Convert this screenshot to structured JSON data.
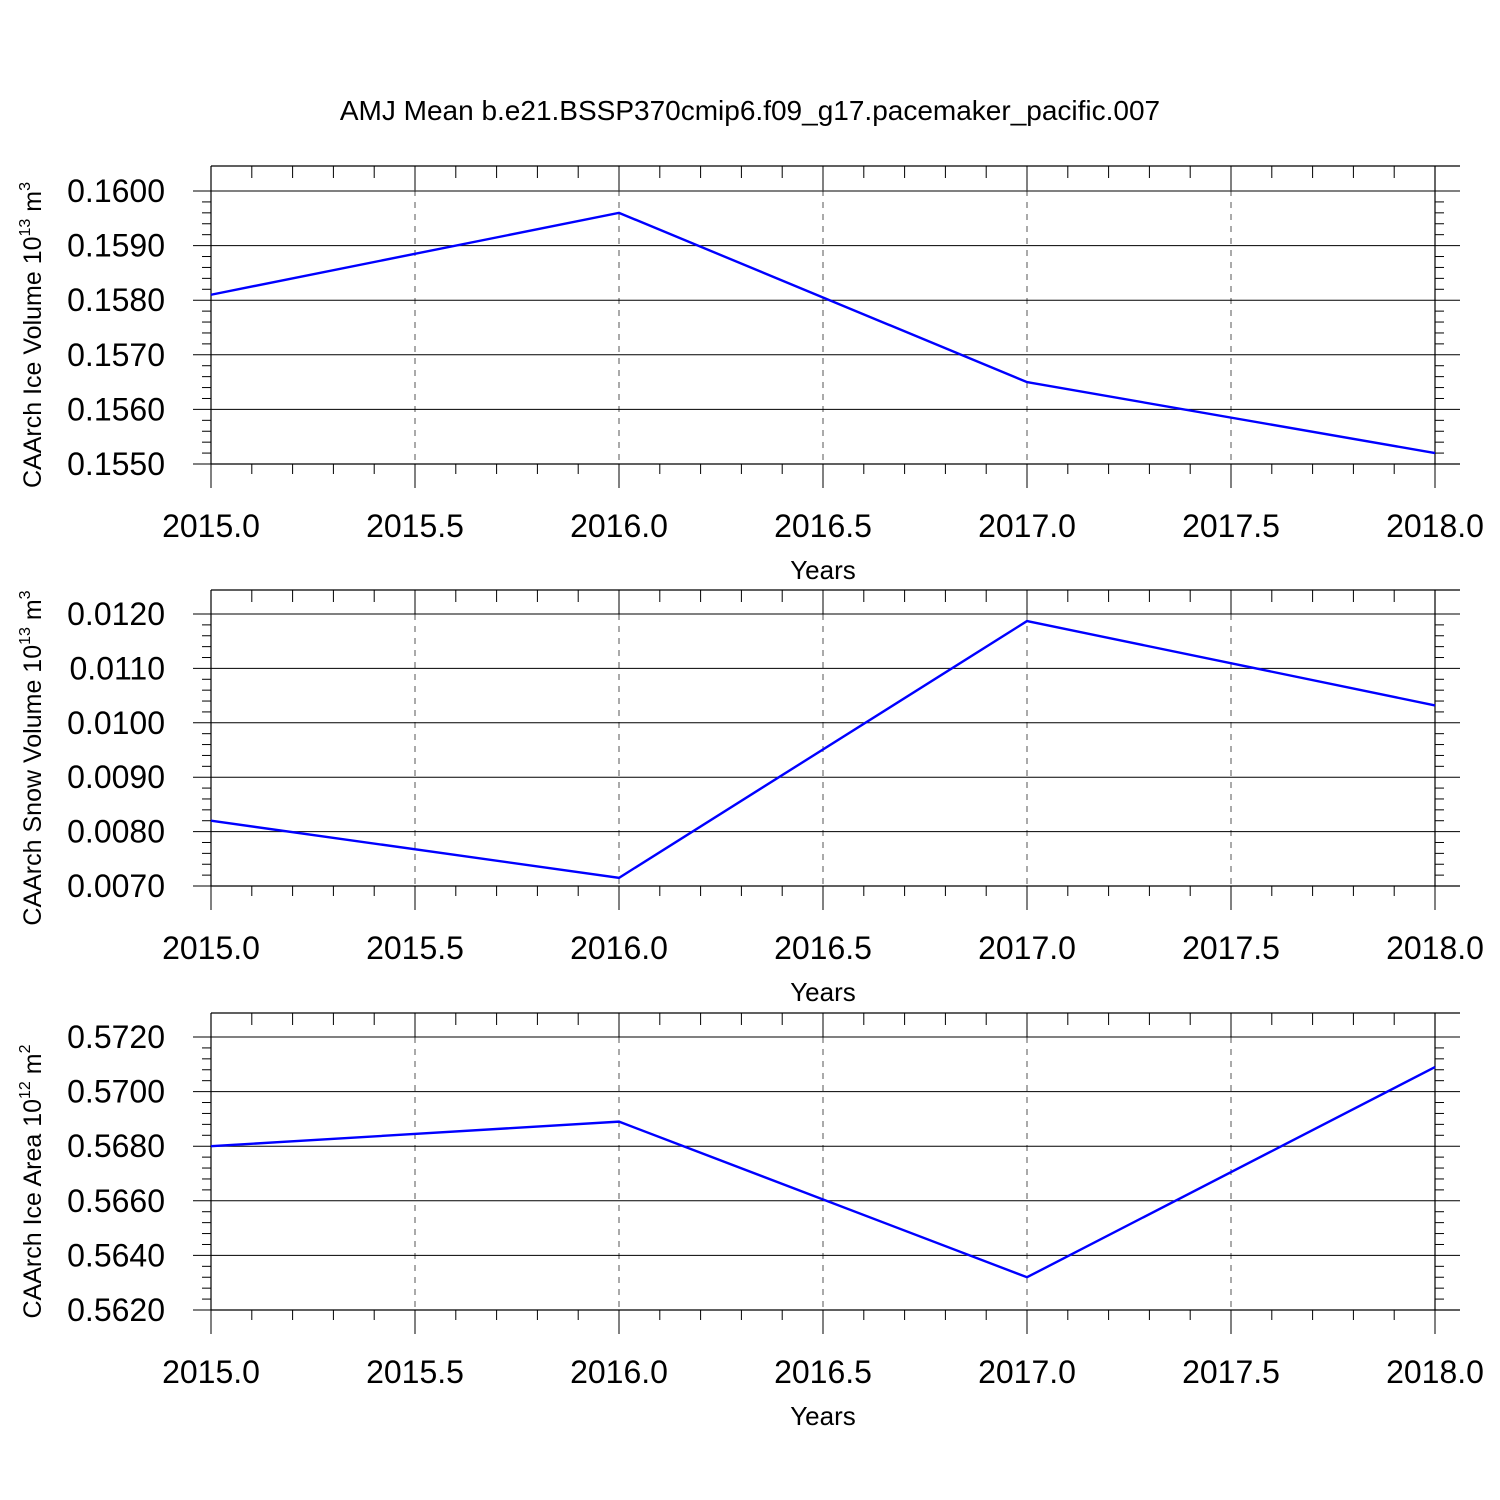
{
  "figure": {
    "title": "AMJ Mean b.e21.BSSP370cmip6.f09_g17.pacemaker_pacific.007"
  },
  "colors": {
    "line": "#0000ff",
    "axes": "#000000",
    "grid": "#555555",
    "background": "#ffffff"
  },
  "chart_data": [
    {
      "type": "line",
      "title": "",
      "xlabel": "Years",
      "ylabel": {
        "text": "CAArch Ice Volume 10",
        "exp": "13",
        "unit": " m",
        "unit_exp": "3"
      },
      "x": [
        2015,
        2016,
        2017,
        2018
      ],
      "series": [
        {
          "values": [
            0.1581,
            0.1596,
            0.1565,
            0.1552
          ]
        }
      ],
      "xlim": [
        2015,
        2018
      ],
      "ylim": [
        0.155,
        0.16
      ],
      "xticks": [
        "2015.0",
        "2015.5",
        "2016.0",
        "2016.5",
        "2017.0",
        "2017.5",
        "2018.0"
      ],
      "yticks": [
        "0.1550",
        "0.1560",
        "0.1570",
        "0.1580",
        "0.1590",
        "0.1600"
      ],
      "grid": "vertical dashed at major x ticks"
    },
    {
      "type": "line",
      "title": "",
      "xlabel": "Years",
      "ylabel": {
        "text": "CAArch Snow Volume 10",
        "exp": "13",
        "unit": " m",
        "unit_exp": "3"
      },
      "x": [
        2015,
        2016,
        2017,
        2018
      ],
      "series": [
        {
          "values": [
            0.0082,
            0.00715,
            0.01187,
            0.01032
          ]
        }
      ],
      "xlim": [
        2015,
        2018
      ],
      "ylim": [
        0.007,
        0.012
      ],
      "xticks": [
        "2015.0",
        "2015.5",
        "2016.0",
        "2016.5",
        "2017.0",
        "2017.5",
        "2018.0"
      ],
      "yticks": [
        "0.0070",
        "0.0080",
        "0.0090",
        "0.0100",
        "0.0110",
        "0.0120"
      ],
      "grid": "vertical dashed at major x ticks"
    },
    {
      "type": "line",
      "title": "",
      "xlabel": "Years",
      "ylabel": {
        "text": "CAArch Ice Area 10",
        "exp": "12",
        "unit": " m",
        "unit_exp": "2"
      },
      "x": [
        2015,
        2016,
        2017,
        2018
      ],
      "series": [
        {
          "values": [
            0.568,
            0.5689,
            0.5632,
            0.5709
          ]
        }
      ],
      "xlim": [
        2015,
        2018
      ],
      "ylim": [
        0.562,
        0.572
      ],
      "xticks": [
        "2015.0",
        "2015.5",
        "2016.0",
        "2016.5",
        "2017.0",
        "2017.5",
        "2018.0"
      ],
      "yticks": [
        "0.5620",
        "0.5640",
        "0.5660",
        "0.5680",
        "0.5700",
        "0.5720"
      ],
      "grid": "vertical dashed at major x ticks"
    }
  ]
}
